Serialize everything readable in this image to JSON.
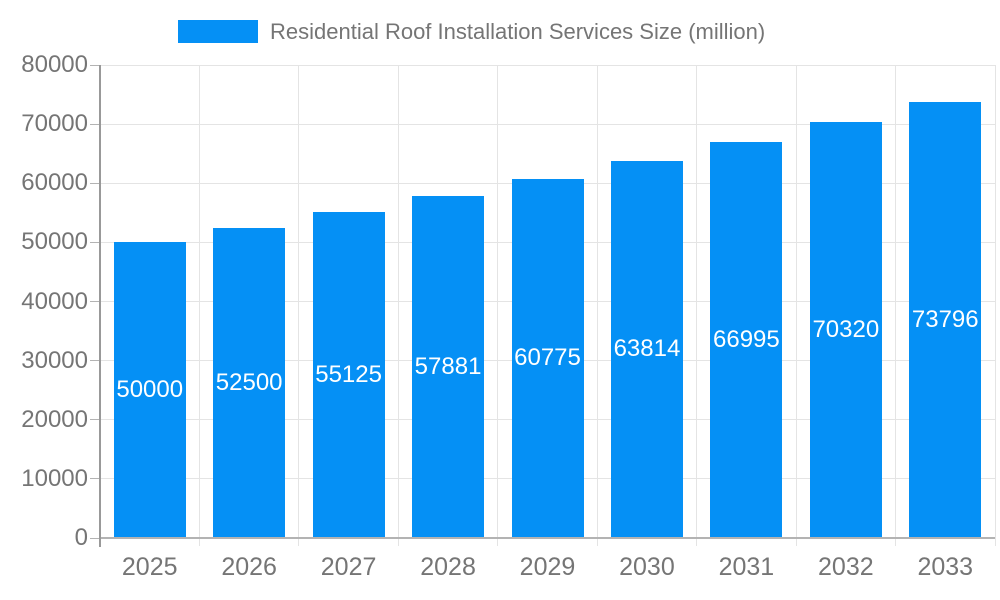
{
  "chart_data": {
    "type": "bar",
    "title": "Residential Roof Installation Services Size (million)",
    "categories": [
      "2025",
      "2026",
      "2027",
      "2028",
      "2029",
      "2030",
      "2031",
      "2032",
      "2033"
    ],
    "series": [
      {
        "name": "Residential Roof Installation Services Size (million)",
        "values": [
          50000,
          52500,
          55125,
          57881,
          60775,
          63814,
          66995,
          70320,
          73796
        ]
      }
    ],
    "value_labels": [
      "50000",
      "52500",
      "55125",
      "57881",
      "60775",
      "63814",
      "66995",
      "70320",
      "73796"
    ],
    "ytick_labels": [
      "0",
      "10000",
      "20000",
      "30000",
      "40000",
      "50000",
      "60000",
      "70000",
      "80000"
    ],
    "yticks": [
      0,
      10000,
      20000,
      30000,
      40000,
      50000,
      60000,
      70000,
      80000
    ],
    "ylim": [
      0,
      80000
    ],
    "xlabel": "",
    "ylabel": "",
    "grid": true,
    "legend_position": "top"
  },
  "colors": {
    "bar": "#0590f5",
    "axis_text": "#757575",
    "value_text": "#ffffff",
    "gridline": "#e4e4e4",
    "axis_line": "#999999",
    "baseline": "#b3b3b3",
    "tick": "#b3b3b3"
  }
}
